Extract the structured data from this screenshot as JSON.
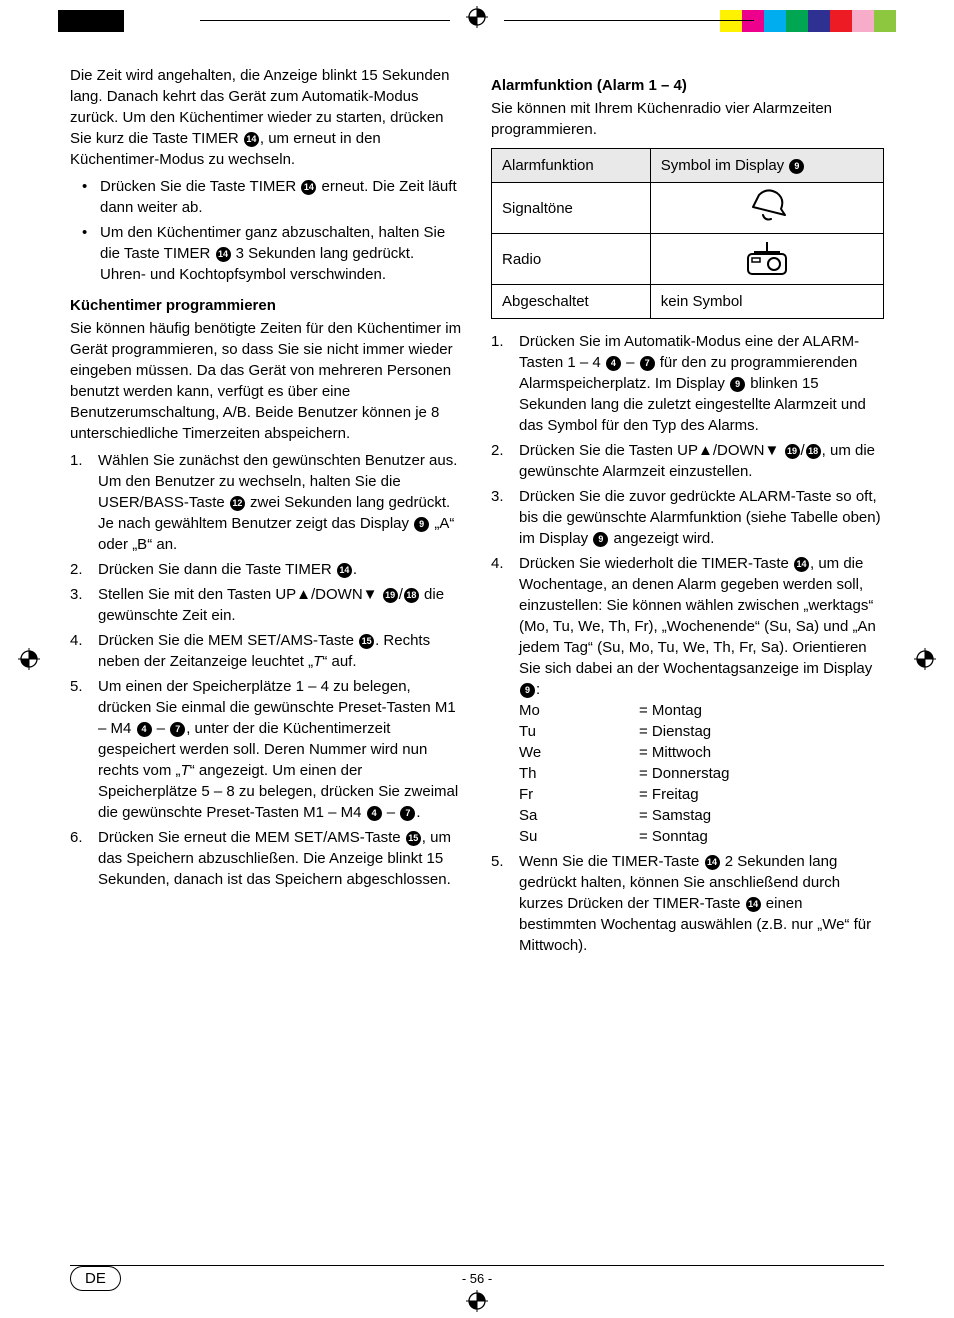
{
  "printer_marks": {
    "left_colors": [
      "#000000",
      "#000000",
      "#000000"
    ],
    "right_colors": [
      "#fff200",
      "#ec008c",
      "#00aeef",
      "#00a651",
      "#2e3192",
      "#ed1c24",
      "#f7adc9",
      "#8dc63f"
    ]
  },
  "left_col": {
    "intro_para": "Die Zeit wird angehalten, die Anzeige blinkt 15 Sekunden lang. Danach kehrt das Gerät zum Automatik-Modus zurück. Um den Küchentimer wieder zu starten, drücken Sie kurz die Taste TIMER ",
    "intro_para_ref": "14",
    "intro_para_tail": ", um erneut in den Küchentimer-Modus zu wechseln.",
    "bullets": [
      {
        "pre": "Drücken Sie die Taste TIMER ",
        "ref": "14",
        "post": " erneut. Die Zeit läuft dann weiter ab."
      },
      {
        "pre": "Um den Küchentimer ganz abzuschalten, halten Sie die Taste TIMER ",
        "ref": "14",
        "post": " 3 Sekunden lang gedrückt. Uhren- und Kochtopfsymbol verschwinden."
      }
    ],
    "h1": "Küchentimer programmieren",
    "para2": "Sie können häufig benötigte Zeiten für den Küchentimer im Gerät programmieren, so dass Sie sie nicht immer wieder eingeben müssen. Da das Gerät von mehreren Personen benutzt werden kann, verfügt es über eine Benutzerumschaltung, A/B. Beide Benutzer können je 8 unterschiedliche Timerzeiten abspeichern.",
    "steps": [
      {
        "n": "1.",
        "frags": [
          {
            "t": "Wählen Sie zunächst den gewünschten Benutzer aus. Um den Benutzer zu wechseln, halten Sie die USER/BASS-Taste "
          },
          {
            "r": "12"
          },
          {
            "t": " zwei Sekunden lang gedrückt. Je nach gewähltem Benutzer zeigt das Display "
          },
          {
            "r": "9"
          },
          {
            "t": " „A“ oder „B“ an."
          }
        ]
      },
      {
        "n": "2.",
        "frags": [
          {
            "t": "Drücken Sie dann die Taste TIMER "
          },
          {
            "r": "14"
          },
          {
            "t": "."
          }
        ]
      },
      {
        "n": "3.",
        "frags": [
          {
            "t": "Stellen Sie mit den Tasten UP▲/DOWN▼ "
          },
          {
            "r": "19"
          },
          {
            "t": "/"
          },
          {
            "r": "18"
          },
          {
            "t": " die gewünschte Zeit ein."
          }
        ]
      },
      {
        "n": "4.",
        "frags": [
          {
            "t": "Drücken Sie die MEM SET/AMS-Taste "
          },
          {
            "r": "15"
          },
          {
            "t": ". Rechts neben der Zeitanzeige leuchtet „"
          },
          {
            "i": "T"
          },
          {
            "t": "“ auf."
          }
        ]
      },
      {
        "n": "5.",
        "frags": [
          {
            "t": "Um einen der Speicherplätze 1 – 4 zu belegen, drücken Sie einmal die gewünschte Preset-Tasten M1 – M4 "
          },
          {
            "r": "4"
          },
          {
            "t": " – "
          },
          {
            "r": "7"
          },
          {
            "t": ", unter der die Küchentimerzeit gespeichert werden soll. Deren Nummer wird nun rechts vom „"
          },
          {
            "i": "T"
          },
          {
            "t": "“ angezeigt. Um einen der Speicherplätze 5 – 8 zu belegen, drücken Sie zweimal die gewünschte Preset-Tasten M1 – M4 "
          },
          {
            "r": "4"
          },
          {
            "t": " – "
          },
          {
            "r": "7"
          },
          {
            "t": "."
          }
        ]
      },
      {
        "n": "6.",
        "frags": [
          {
            "t": "Drücken Sie erneut die MEM SET/AMS-Taste "
          },
          {
            "r": "15"
          },
          {
            "t": ", um das Speichern abzuschließen. Die Anzeige blinkt 15 Sekunden, danach ist das Speichern abgeschlossen."
          }
        ]
      }
    ]
  },
  "right_col": {
    "h1": "Alarmfunktion (Alarm 1 – 4)",
    "intro": "Sie können mit Ihrem Küchenradio vier Alarmzeiten programmieren.",
    "table": {
      "head": {
        "c1": "Alarmfunktion",
        "c2_pre": "Symbol im Display ",
        "c2_ref": "9"
      },
      "rows": [
        {
          "label": "Signaltöne",
          "icon": "bell"
        },
        {
          "label": "Radio",
          "icon": "radio"
        },
        {
          "label": "Abgeschaltet",
          "text": "kein Symbol"
        }
      ]
    },
    "steps": [
      {
        "n": "1.",
        "frags": [
          {
            "t": "Drücken Sie im Automatik-Modus eine der ALARM-Tasten 1 – 4 "
          },
          {
            "r": "4"
          },
          {
            "t": " – "
          },
          {
            "r": "7"
          },
          {
            "t": " für den zu programmierenden Alarmspeicherplatz. Im Display "
          },
          {
            "r": "9"
          },
          {
            "t": " blinken 15 Sekunden lang die zuletzt eingestellte Alarmzeit und das Symbol für den Typ des Alarms."
          }
        ]
      },
      {
        "n": "2.",
        "frags": [
          {
            "t": "Drücken Sie die Tasten UP▲/DOWN▼ "
          },
          {
            "r": "19"
          },
          {
            "t": "/"
          },
          {
            "r": "18"
          },
          {
            "t": ", um die gewünschte Alarmzeit einzustellen."
          }
        ]
      },
      {
        "n": "3.",
        "frags": [
          {
            "t": "Drücken Sie die zuvor gedrückte ALARM-Taste so oft, bis die gewünschte Alarmfunktion (siehe Tabelle oben) im Display "
          },
          {
            "r": "9"
          },
          {
            "t": " angezeigt wird."
          }
        ]
      },
      {
        "n": "4.",
        "frags": [
          {
            "t": "Drücken Sie wiederholt die TIMER-Taste "
          },
          {
            "r": "14"
          },
          {
            "t": ", um die Wochentage, an denen Alarm gegeben werden soll, einzustellen: Sie können wählen zwischen „werktags“ (Mo, Tu, We, Th, Fr), „Wochenende“ (Su, Sa) und „An jedem Tag“ (Su, Mo, Tu, We, Th, Fr, Sa). Orientieren Sie sich dabei an der Wochentagsanzeige im Display "
          },
          {
            "r": "9"
          },
          {
            "t": ":"
          }
        ],
        "days": [
          {
            "a": "Mo",
            "b": "= Montag"
          },
          {
            "a": "Tu",
            "b": "= Dienstag"
          },
          {
            "a": "We",
            "b": "= Mittwoch"
          },
          {
            "a": "Th",
            "b": "= Donnerstag"
          },
          {
            "a": "Fr",
            "b": "= Freitag"
          },
          {
            "a": "Sa",
            "b": "= Samstag"
          },
          {
            "a": "Su",
            "b": "= Sonntag"
          }
        ]
      },
      {
        "n": "5.",
        "frags": [
          {
            "t": "Wenn Sie die TIMER-Taste "
          },
          {
            "r": "14"
          },
          {
            "t": " 2 Sekunden lang gedrückt halten, können Sie anschließend durch kurzes Drücken der TIMER-Taste "
          },
          {
            "r": "14"
          },
          {
            "t": " einen bestimmten Wochentag auswählen (z.B. nur „We“ für Mittwoch)."
          }
        ]
      }
    ]
  },
  "footer": {
    "lang": "DE",
    "page": "- 56 -"
  }
}
